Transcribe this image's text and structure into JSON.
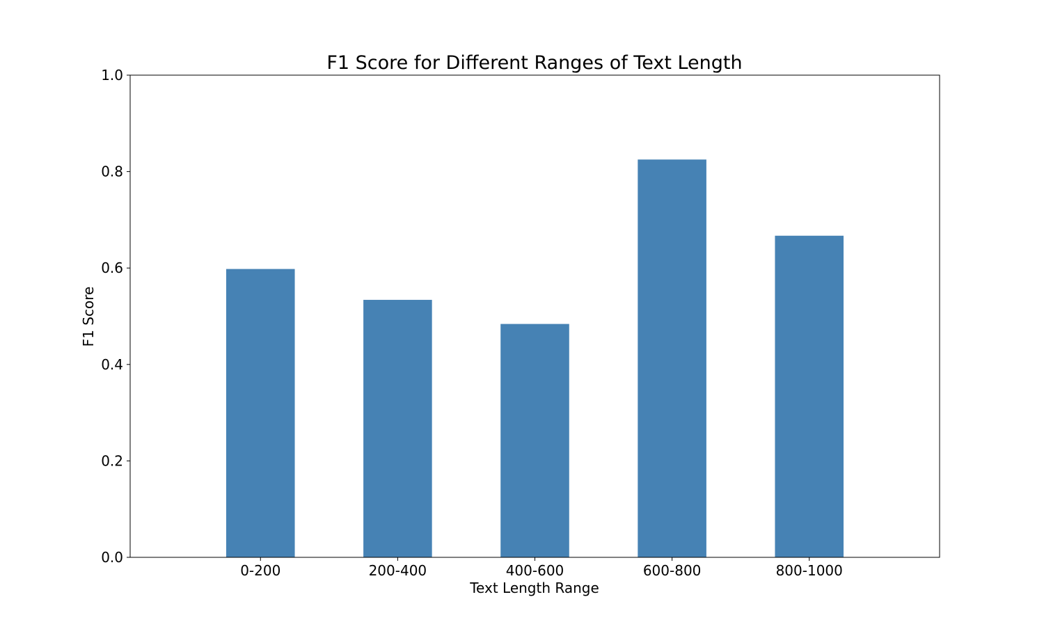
{
  "chart_data": {
    "type": "bar",
    "title": "F1 Score for Different Ranges of Text Length",
    "xlabel": "Text Length Range",
    "ylabel": "F1 Score",
    "categories": [
      "0-200",
      "200-400",
      "400-600",
      "600-800",
      "800-1000"
    ],
    "values": [
      0.598,
      0.534,
      0.484,
      0.825,
      0.667
    ],
    "ylim": [
      0,
      1.0
    ],
    "yticks": [
      "0.0",
      "0.2",
      "0.4",
      "0.6",
      "0.8",
      "1.0"
    ],
    "grid": false,
    "legend": "none",
    "bar_color": "#4682b4"
  }
}
